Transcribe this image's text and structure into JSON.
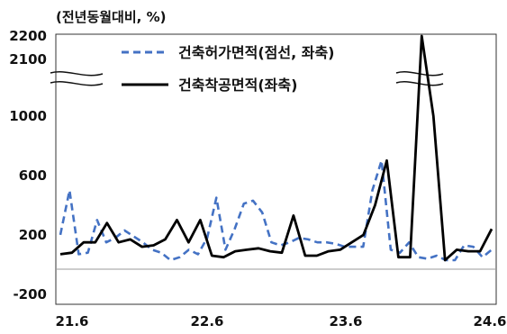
{
  "chart_data": {
    "type": "line",
    "ylabel": "(전년동월대비, %)",
    "y_ticks": [
      "2200",
      "2100",
      "1000",
      "600",
      "200",
      "-200"
    ],
    "x_ticks": [
      "21.6",
      "22.6",
      "23.6",
      "24.6"
    ],
    "axis_break": true,
    "grid": false,
    "legend_position": "top-center",
    "series": [
      {
        "name": "건축허가면적(점선, 좌축)",
        "style": "dashed",
        "color": "#4472C4",
        "values": [
          200,
          500,
          70,
          80,
          300,
          150,
          180,
          230,
          190,
          150,
          100,
          80,
          30,
          50,
          100,
          70,
          180,
          450,
          100,
          240,
          410,
          430,
          350,
          150,
          130,
          150,
          180,
          170,
          150,
          150,
          140,
          120,
          120,
          120,
          500,
          700,
          100,
          80,
          150,
          50,
          40,
          60,
          30,
          30,
          130,
          120,
          50,
          100
        ]
      },
      {
        "name": "건축착공면적(좌축)",
        "style": "solid",
        "color": "#000000",
        "values": [
          70,
          80,
          150,
          150,
          280,
          150,
          170,
          120,
          130,
          170,
          300,
          150,
          300,
          60,
          50,
          90,
          100,
          110,
          90,
          80,
          330,
          60,
          60,
          90,
          100,
          150,
          200,
          400,
          700,
          50,
          50,
          2200,
          1000,
          30,
          100,
          90,
          90,
          240
        ]
      }
    ]
  }
}
